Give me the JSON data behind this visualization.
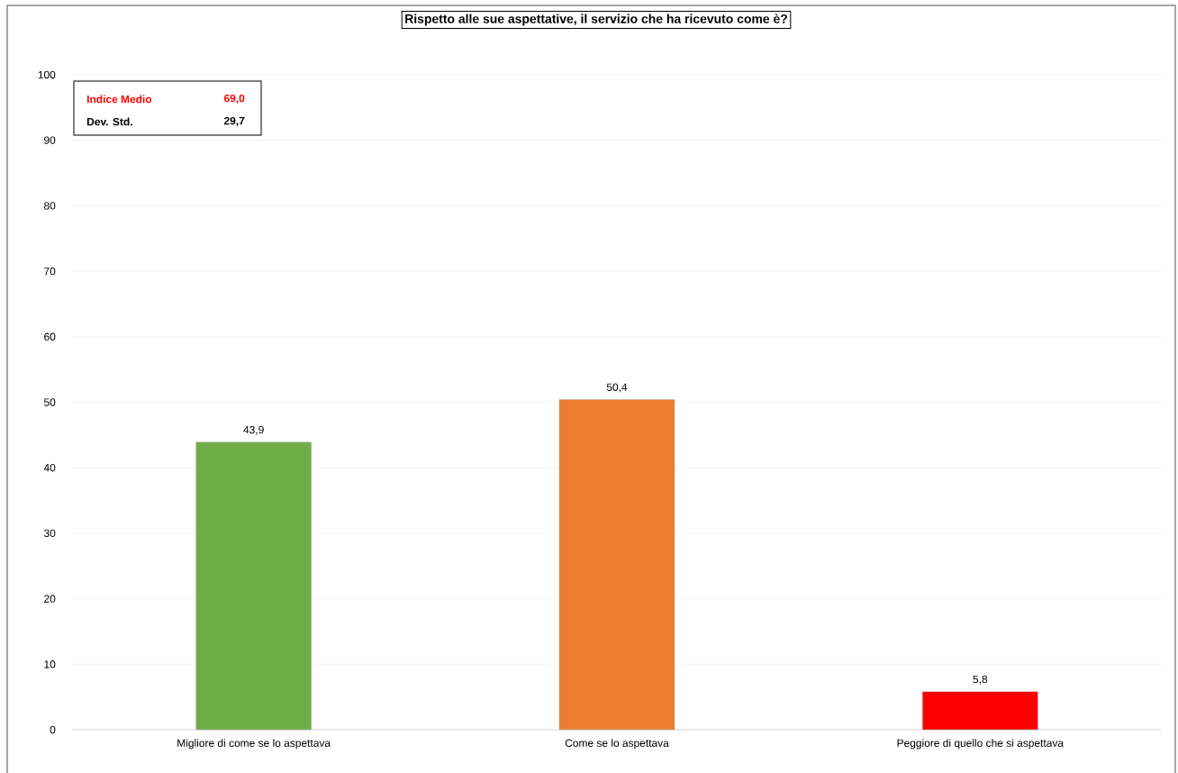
{
  "chart_data": {
    "type": "bar",
    "title": "Rispetto alle sue aspettative, il servizio che ha ricevuto come è?",
    "categories": [
      "Migliore di come se lo aspettava",
      "Come se lo aspettava",
      "Peggiore di quello che si aspettava"
    ],
    "values": [
      43.9,
      50.4,
      5.8
    ],
    "colors": [
      "#70ad47",
      "#ed7d31",
      "#ff0000"
    ],
    "value_labels": [
      "43,9",
      "50,4",
      "5,8"
    ],
    "ylim": [
      0,
      100
    ],
    "yticks": [
      0,
      10,
      20,
      30,
      40,
      50,
      60,
      70,
      80,
      90,
      100
    ],
    "grid": "y",
    "annotations": [
      "Indice Medio",
      "69,0",
      "Dev. Std.",
      "29,7"
    ]
  }
}
